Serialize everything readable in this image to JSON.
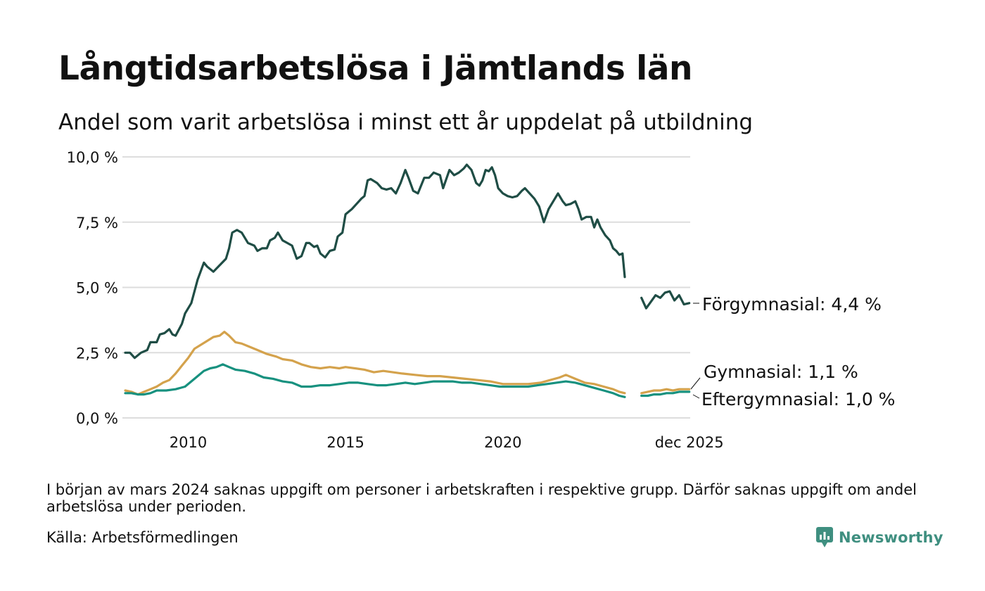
{
  "title": "Långtidsarbetslösa i Jämtlands län",
  "subtitle": "Andel som varit arbetslösa i minst ett år uppdelat på utbildning",
  "footnote": "I början av mars 2024 saknas uppgift om personer i arbetskraften i respektive grupp. Därför saknas uppgift om andel arbetslösa under perioden.",
  "source": "Källa: Arbetsförmedlingen",
  "brand": "Newsworthy",
  "colors": {
    "forgymnasial": "#1f4d45",
    "gymnasial": "#d4a24c",
    "eftergymnasial": "#17917f",
    "grid": "#dddddd",
    "brand": "#3f8f80"
  },
  "chart_data": {
    "type": "line",
    "title": "Långtidsarbetslösa i Jämtlands län",
    "subtitle": "Andel som varit arbetslösa i minst ett år uppdelat på utbildning",
    "xlabel": "",
    "ylabel": "",
    "xlim": [
      2008.0,
      2025.95
    ],
    "ylim": [
      0,
      10
    ],
    "grid": true,
    "y_ticks": [
      {
        "value": 0,
        "label": "0,0 %"
      },
      {
        "value": 2.5,
        "label": "2,5 %"
      },
      {
        "value": 5,
        "label": "5,0 %"
      },
      {
        "value": 7.5,
        "label": "7,5 %"
      },
      {
        "value": 10,
        "label": "10,0 %"
      }
    ],
    "x_ticks": [
      {
        "value": 2010,
        "label": "2010"
      },
      {
        "value": 2015,
        "label": "2015"
      },
      {
        "value": 2020,
        "label": "2020"
      },
      {
        "value": 2025.92,
        "label": "dec 2025"
      }
    ],
    "gap": {
      "from": 2023.87,
      "to": 2024.4
    },
    "series": [
      {
        "name": "Förgymnasial",
        "label": "Förgymnasial: 4,4 %",
        "color_key": "forgymnasial",
        "points": [
          [
            2008.0,
            2.5
          ],
          [
            2008.15,
            2.5
          ],
          [
            2008.3,
            2.3
          ],
          [
            2008.5,
            2.5
          ],
          [
            2008.7,
            2.6
          ],
          [
            2008.8,
            2.9
          ],
          [
            2009.0,
            2.9
          ],
          [
            2009.1,
            3.2
          ],
          [
            2009.25,
            3.25
          ],
          [
            2009.4,
            3.4
          ],
          [
            2009.5,
            3.2
          ],
          [
            2009.6,
            3.15
          ],
          [
            2009.8,
            3.6
          ],
          [
            2009.9,
            4.0
          ],
          [
            2010.1,
            4.4
          ],
          [
            2010.3,
            5.3
          ],
          [
            2010.5,
            5.95
          ],
          [
            2010.6,
            5.8
          ],
          [
            2010.8,
            5.6
          ],
          [
            2011.0,
            5.85
          ],
          [
            2011.2,
            6.1
          ],
          [
            2011.3,
            6.5
          ],
          [
            2011.4,
            7.1
          ],
          [
            2011.55,
            7.2
          ],
          [
            2011.7,
            7.1
          ],
          [
            2011.9,
            6.7
          ],
          [
            2012.1,
            6.6
          ],
          [
            2012.2,
            6.4
          ],
          [
            2012.35,
            6.5
          ],
          [
            2012.5,
            6.5
          ],
          [
            2012.6,
            6.8
          ],
          [
            2012.75,
            6.9
          ],
          [
            2012.85,
            7.1
          ],
          [
            2013.0,
            6.8
          ],
          [
            2013.15,
            6.7
          ],
          [
            2013.3,
            6.6
          ],
          [
            2013.45,
            6.1
          ],
          [
            2013.6,
            6.2
          ],
          [
            2013.75,
            6.7
          ],
          [
            2013.85,
            6.7
          ],
          [
            2014.0,
            6.55
          ],
          [
            2014.1,
            6.6
          ],
          [
            2014.2,
            6.3
          ],
          [
            2014.35,
            6.15
          ],
          [
            2014.5,
            6.4
          ],
          [
            2014.65,
            6.45
          ],
          [
            2014.75,
            6.95
          ],
          [
            2014.9,
            7.1
          ],
          [
            2015.0,
            7.8
          ],
          [
            2015.1,
            7.9
          ],
          [
            2015.2,
            8.0
          ],
          [
            2015.35,
            8.2
          ],
          [
            2015.5,
            8.4
          ],
          [
            2015.6,
            8.5
          ],
          [
            2015.7,
            9.1
          ],
          [
            2015.8,
            9.15
          ],
          [
            2016.0,
            9.0
          ],
          [
            2016.15,
            8.8
          ],
          [
            2016.3,
            8.75
          ],
          [
            2016.45,
            8.8
          ],
          [
            2016.6,
            8.6
          ],
          [
            2016.75,
            9.0
          ],
          [
            2016.9,
            9.5
          ],
          [
            2017.0,
            9.2
          ],
          [
            2017.15,
            8.7
          ],
          [
            2017.3,
            8.6
          ],
          [
            2017.5,
            9.2
          ],
          [
            2017.65,
            9.2
          ],
          [
            2017.8,
            9.4
          ],
          [
            2018.0,
            9.3
          ],
          [
            2018.1,
            8.8
          ],
          [
            2018.3,
            9.5
          ],
          [
            2018.45,
            9.3
          ],
          [
            2018.6,
            9.4
          ],
          [
            2018.75,
            9.55
          ],
          [
            2018.85,
            9.7
          ],
          [
            2019.0,
            9.5
          ],
          [
            2019.15,
            9.0
          ],
          [
            2019.25,
            8.9
          ],
          [
            2019.35,
            9.1
          ],
          [
            2019.45,
            9.5
          ],
          [
            2019.55,
            9.45
          ],
          [
            2019.65,
            9.6
          ],
          [
            2019.75,
            9.3
          ],
          [
            2019.85,
            8.8
          ],
          [
            2020.0,
            8.6
          ],
          [
            2020.15,
            8.5
          ],
          [
            2020.3,
            8.45
          ],
          [
            2020.45,
            8.5
          ],
          [
            2020.6,
            8.7
          ],
          [
            2020.7,
            8.8
          ],
          [
            2020.85,
            8.6
          ],
          [
            2021.0,
            8.4
          ],
          [
            2021.15,
            8.1
          ],
          [
            2021.3,
            7.5
          ],
          [
            2021.45,
            8.0
          ],
          [
            2021.6,
            8.3
          ],
          [
            2021.75,
            8.6
          ],
          [
            2021.9,
            8.3
          ],
          [
            2022.0,
            8.15
          ],
          [
            2022.15,
            8.2
          ],
          [
            2022.3,
            8.3
          ],
          [
            2022.4,
            8.0
          ],
          [
            2022.5,
            7.6
          ],
          [
            2022.65,
            7.7
          ],
          [
            2022.8,
            7.7
          ],
          [
            2022.9,
            7.3
          ],
          [
            2023.0,
            7.6
          ],
          [
            2023.1,
            7.3
          ],
          [
            2023.25,
            7.0
          ],
          [
            2023.4,
            6.8
          ],
          [
            2023.5,
            6.5
          ],
          [
            2023.6,
            6.4
          ],
          [
            2023.7,
            6.25
          ],
          [
            2023.8,
            6.3
          ],
          [
            2023.87,
            5.4
          ],
          null,
          [
            2024.4,
            4.6
          ],
          [
            2024.55,
            4.2
          ],
          [
            2024.7,
            4.45
          ],
          [
            2024.85,
            4.7
          ],
          [
            2025.0,
            4.6
          ],
          [
            2025.15,
            4.8
          ],
          [
            2025.3,
            4.85
          ],
          [
            2025.45,
            4.5
          ],
          [
            2025.6,
            4.7
          ],
          [
            2025.75,
            4.35
          ],
          [
            2025.92,
            4.4
          ]
        ]
      },
      {
        "name": "Gymnasial",
        "label": "Gymnasial: 1,1 %",
        "color_key": "gymnasial",
        "points": [
          [
            2008.0,
            1.05
          ],
          [
            2008.2,
            1.0
          ],
          [
            2008.4,
            0.9
          ],
          [
            2008.6,
            1.0
          ],
          [
            2008.8,
            1.1
          ],
          [
            2009.0,
            1.2
          ],
          [
            2009.2,
            1.35
          ],
          [
            2009.4,
            1.45
          ],
          [
            2009.6,
            1.7
          ],
          [
            2009.8,
            2.0
          ],
          [
            2010.0,
            2.3
          ],
          [
            2010.2,
            2.65
          ],
          [
            2010.4,
            2.8
          ],
          [
            2010.6,
            2.95
          ],
          [
            2010.8,
            3.1
          ],
          [
            2011.0,
            3.15
          ],
          [
            2011.15,
            3.3
          ],
          [
            2011.3,
            3.15
          ],
          [
            2011.5,
            2.9
          ],
          [
            2011.7,
            2.85
          ],
          [
            2011.9,
            2.75
          ],
          [
            2012.2,
            2.6
          ],
          [
            2012.5,
            2.45
          ],
          [
            2012.8,
            2.35
          ],
          [
            2013.0,
            2.25
          ],
          [
            2013.3,
            2.2
          ],
          [
            2013.6,
            2.05
          ],
          [
            2013.9,
            1.95
          ],
          [
            2014.2,
            1.9
          ],
          [
            2014.5,
            1.95
          ],
          [
            2014.8,
            1.9
          ],
          [
            2015.0,
            1.95
          ],
          [
            2015.3,
            1.9
          ],
          [
            2015.6,
            1.85
          ],
          [
            2015.9,
            1.75
          ],
          [
            2016.2,
            1.8
          ],
          [
            2016.5,
            1.75
          ],
          [
            2016.8,
            1.7
          ],
          [
            2017.2,
            1.65
          ],
          [
            2017.6,
            1.6
          ],
          [
            2018.0,
            1.6
          ],
          [
            2018.4,
            1.55
          ],
          [
            2018.8,
            1.5
          ],
          [
            2019.2,
            1.45
          ],
          [
            2019.6,
            1.4
          ],
          [
            2020.0,
            1.3
          ],
          [
            2020.4,
            1.3
          ],
          [
            2020.8,
            1.3
          ],
          [
            2021.2,
            1.35
          ],
          [
            2021.5,
            1.45
          ],
          [
            2021.8,
            1.55
          ],
          [
            2022.0,
            1.65
          ],
          [
            2022.3,
            1.5
          ],
          [
            2022.6,
            1.35
          ],
          [
            2022.9,
            1.3
          ],
          [
            2023.2,
            1.2
          ],
          [
            2023.5,
            1.1
          ],
          [
            2023.7,
            1.0
          ],
          [
            2023.87,
            0.95
          ],
          null,
          [
            2024.4,
            0.95
          ],
          [
            2024.6,
            1.0
          ],
          [
            2024.8,
            1.05
          ],
          [
            2025.0,
            1.05
          ],
          [
            2025.2,
            1.1
          ],
          [
            2025.4,
            1.05
          ],
          [
            2025.6,
            1.1
          ],
          [
            2025.8,
            1.1
          ],
          [
            2025.92,
            1.1
          ]
        ]
      },
      {
        "name": "Eftergymnasial",
        "label": "Eftergymnasial: 1,0 %",
        "color_key": "eftergymnasial",
        "points": [
          [
            2008.0,
            0.95
          ],
          [
            2008.2,
            0.95
          ],
          [
            2008.4,
            0.9
          ],
          [
            2008.6,
            0.9
          ],
          [
            2008.8,
            0.95
          ],
          [
            2009.0,
            1.05
          ],
          [
            2009.3,
            1.05
          ],
          [
            2009.6,
            1.1
          ],
          [
            2009.9,
            1.2
          ],
          [
            2010.1,
            1.4
          ],
          [
            2010.3,
            1.6
          ],
          [
            2010.5,
            1.8
          ],
          [
            2010.7,
            1.9
          ],
          [
            2010.9,
            1.95
          ],
          [
            2011.1,
            2.05
          ],
          [
            2011.3,
            1.95
          ],
          [
            2011.5,
            1.85
          ],
          [
            2011.8,
            1.8
          ],
          [
            2012.1,
            1.7
          ],
          [
            2012.4,
            1.55
          ],
          [
            2012.7,
            1.5
          ],
          [
            2013.0,
            1.4
          ],
          [
            2013.3,
            1.35
          ],
          [
            2013.6,
            1.2
          ],
          [
            2013.9,
            1.2
          ],
          [
            2014.2,
            1.25
          ],
          [
            2014.5,
            1.25
          ],
          [
            2014.8,
            1.3
          ],
          [
            2015.1,
            1.35
          ],
          [
            2015.4,
            1.35
          ],
          [
            2015.7,
            1.3
          ],
          [
            2016.0,
            1.25
          ],
          [
            2016.3,
            1.25
          ],
          [
            2016.6,
            1.3
          ],
          [
            2016.9,
            1.35
          ],
          [
            2017.2,
            1.3
          ],
          [
            2017.5,
            1.35
          ],
          [
            2017.8,
            1.4
          ],
          [
            2018.1,
            1.4
          ],
          [
            2018.4,
            1.4
          ],
          [
            2018.7,
            1.35
          ],
          [
            2019.0,
            1.35
          ],
          [
            2019.3,
            1.3
          ],
          [
            2019.6,
            1.25
          ],
          [
            2019.9,
            1.2
          ],
          [
            2020.2,
            1.2
          ],
          [
            2020.5,
            1.2
          ],
          [
            2020.8,
            1.2
          ],
          [
            2021.1,
            1.25
          ],
          [
            2021.4,
            1.3
          ],
          [
            2021.7,
            1.35
          ],
          [
            2022.0,
            1.4
          ],
          [
            2022.3,
            1.35
          ],
          [
            2022.6,
            1.25
          ],
          [
            2022.9,
            1.15
          ],
          [
            2023.2,
            1.05
          ],
          [
            2023.5,
            0.95
          ],
          [
            2023.7,
            0.85
          ],
          [
            2023.87,
            0.8
          ],
          null,
          [
            2024.4,
            0.85
          ],
          [
            2024.6,
            0.85
          ],
          [
            2024.8,
            0.9
          ],
          [
            2025.0,
            0.9
          ],
          [
            2025.2,
            0.95
          ],
          [
            2025.4,
            0.95
          ],
          [
            2025.6,
            1.0
          ],
          [
            2025.8,
            1.0
          ],
          [
            2025.92,
            1.0
          ]
        ]
      }
    ]
  }
}
